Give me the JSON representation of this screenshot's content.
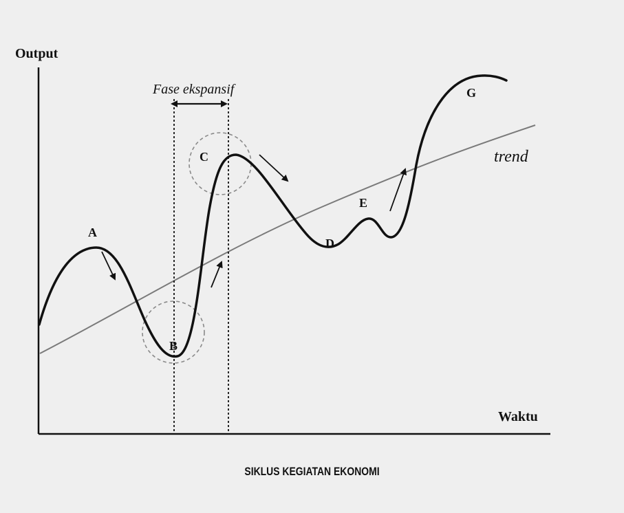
{
  "axes": {
    "y_label": "Output",
    "x_label": "Waktu"
  },
  "annotations": {
    "phase_label": "Fase ekspansif",
    "trend_label": "trend"
  },
  "points": [
    {
      "id": "A",
      "label": "A"
    },
    {
      "id": "B",
      "label": "B"
    },
    {
      "id": "C",
      "label": "C"
    },
    {
      "id": "D",
      "label": "D"
    },
    {
      "id": "E",
      "label": "E"
    },
    {
      "id": "G",
      "label": "G"
    }
  ],
  "caption": "SIKLUS KEGIATAN EKONOMI",
  "colors": {
    "background": "#efefef",
    "cycle_line": "#111111",
    "trend_line": "#7a7a7a"
  }
}
